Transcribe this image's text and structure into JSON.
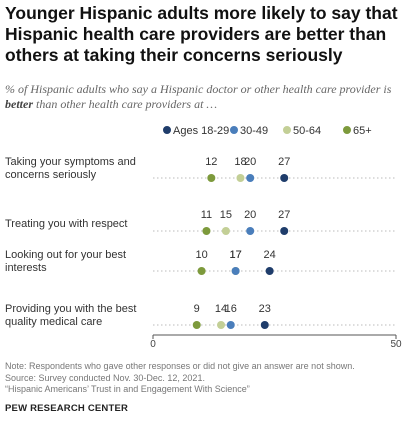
{
  "header": {
    "title": "Younger Hispanic adults more likely to say that Hispanic health care providers are better than others at taking their concerns seriously",
    "subtitle_pre": "% of Hispanic adults who say a Hispanic doctor or other health care provider is ",
    "subtitle_bold": "better",
    "subtitle_post": " than other health care providers at …"
  },
  "chart_data": {
    "type": "scatter",
    "categories": [
      [
        "Taking your symptoms and",
        "concerns seriously"
      ],
      [
        "Treating you with respect"
      ],
      [
        "Looking out for your best",
        "interests"
      ],
      [
        "Providing you with the best",
        "quality medical care"
      ]
    ],
    "series": [
      {
        "name": "Ages 18-29",
        "color": "#1f3d6b",
        "values": [
          27,
          27,
          24,
          23
        ]
      },
      {
        "name": "30-49",
        "color": "#4a7ebb",
        "values": [
          20,
          20,
          17,
          16
        ]
      },
      {
        "name": "50-64",
        "color": "#c3cf96",
        "values": [
          18,
          15,
          17,
          14
        ]
      },
      {
        "name": "65+",
        "color": "#7d9a3c",
        "values": [
          12,
          11,
          10,
          9
        ]
      }
    ],
    "xlim": [
      0,
      50
    ],
    "x_ticks": [
      "0",
      "50"
    ],
    "legend_position": "top",
    "grid": false
  },
  "notes": {
    "note": "Note: Respondents who gave other responses or did not give an answer are not shown.",
    "source": "Source: Survey conducted Nov. 30-Dec. 12, 2021.",
    "report": "“Hispanic Americans’ Trust in and Engagement With Science”",
    "org": "PEW RESEARCH CENTER"
  }
}
